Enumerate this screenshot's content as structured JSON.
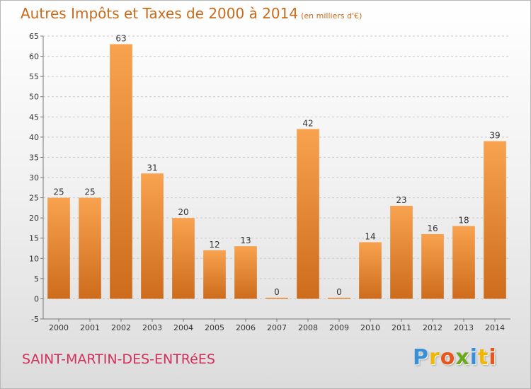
{
  "header": {
    "title": "Autres Impôts et Taxes de 2000 à 2014",
    "subtitle": "(en milliers d'€)"
  },
  "footer": {
    "commune": "SAINT-MARTIN-DES-ENTRéES",
    "logo": [
      {
        "char": "P",
        "color": "#3a8fd6"
      },
      {
        "char": "r",
        "color": "#f2b500"
      },
      {
        "char": "o",
        "color": "#e9561b"
      },
      {
        "char": "x",
        "color": "#6aa81a"
      },
      {
        "char": "i",
        "color": "#3a8fd6"
      },
      {
        "char": "t",
        "color": "#f2b500"
      },
      {
        "char": "i",
        "color": "#e9561b"
      }
    ]
  },
  "colors": {
    "bar_top": "#f8a24f",
    "bar_bottom": "#cd6c1c",
    "grid": "#c9c9c9",
    "axis": "#777777"
  },
  "chart_data": {
    "type": "bar",
    "title": "Autres Impôts et Taxes de 2000 à 2014",
    "subtitle": "(en milliers d'€)",
    "xlabel": "",
    "ylabel": "",
    "categories": [
      "2000",
      "2001",
      "2002",
      "2003",
      "2004",
      "2005",
      "2006",
      "2007",
      "2008",
      "2009",
      "2010",
      "2011",
      "2012",
      "2013",
      "2014"
    ],
    "values": [
      25,
      25,
      63,
      31,
      20,
      12,
      13,
      0,
      42,
      0,
      14,
      23,
      16,
      18,
      39
    ],
    "ylim": [
      -5,
      65
    ],
    "yticks": [
      -5,
      0,
      5,
      10,
      15,
      20,
      25,
      30,
      35,
      40,
      45,
      50,
      55,
      60,
      65
    ],
    "grid": true,
    "legend": "none"
  }
}
